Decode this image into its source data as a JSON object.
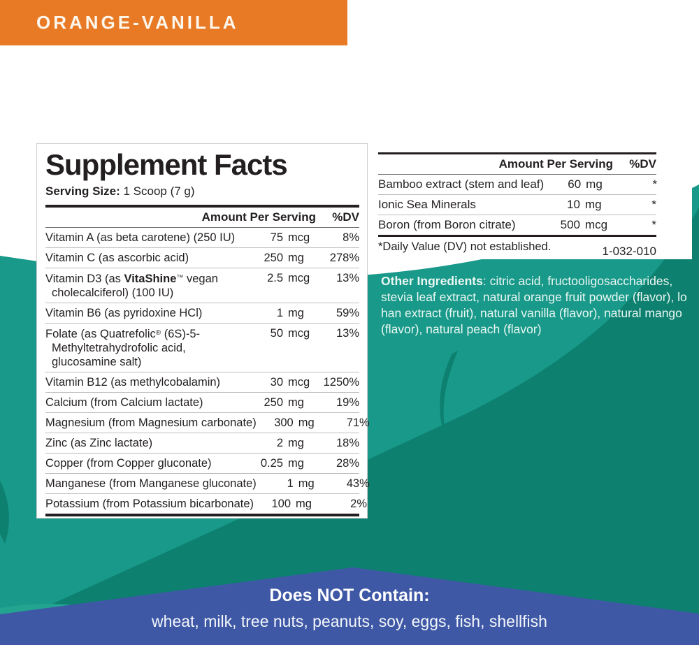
{
  "banner": {
    "flavor": "ORANGE-VANILLA",
    "bg_color": "#E87A25"
  },
  "colors": {
    "teal_bright": "#18998A",
    "teal_dark": "#0D8070",
    "teal_light_accent": "#23A491",
    "blue_band": "#3F58A6",
    "text_dark": "#231F20",
    "text_on_teal": "#EAF7F2"
  },
  "left_panel": {
    "title": "Supplement Facts",
    "serving_label": "Serving Size:",
    "serving_value": " 1 Scoop (7 g)",
    "col_amount": "Amount Per Serving",
    "col_dv": "%DV",
    "rows": [
      {
        "name": "Vitamin A (as beta carotene) (250 IU)",
        "num": "75",
        "unit": "mcg",
        "dv": "8%"
      },
      {
        "name": "Vitamin C (as ascorbic acid)",
        "num": "250",
        "unit": "mg",
        "dv": "278%"
      },
      {
        "parts": [
          {
            "t": "Vitamin D3 (as "
          },
          {
            "t": "VitaShine",
            "b": true
          },
          {
            "t": "™",
            "sup": true
          },
          {
            "t": " vegan"
          },
          {
            "br": true
          },
          {
            "t": "cholecalciferol) (100 IU)"
          }
        ],
        "num": "2.5",
        "unit": "mcg",
        "dv": "13%"
      },
      {
        "name": "Vitamin B6 (as pyridoxine HCl)",
        "num": "1",
        "unit": "mg",
        "dv": "59%"
      },
      {
        "parts": [
          {
            "t": "Folate (as Quatrefolic"
          },
          {
            "t": "®",
            "sup": true
          },
          {
            "t": " (6S)-5-"
          },
          {
            "br": true
          },
          {
            "t": "Methyltetrahydrofolic acid,"
          },
          {
            "br": true
          },
          {
            "t": "glucosamine salt)"
          }
        ],
        "num": "50",
        "unit": "mcg",
        "dv": "13%"
      },
      {
        "name": "Vitamin B12 (as methylcobalamin)",
        "num": "30",
        "unit": "mcg",
        "dv": "1250%"
      },
      {
        "name": "Calcium (from Calcium lactate)",
        "num": "250",
        "unit": "mg",
        "dv": "19%"
      },
      {
        "name": "Magnesium (from Magnesium carbonate)",
        "num": "300",
        "unit": "mg",
        "dv": "71%"
      },
      {
        "name": "Zinc (as Zinc lactate)",
        "num": "2",
        "unit": "mg",
        "dv": "18%"
      },
      {
        "name": "Copper (from Copper gluconate)",
        "num": "0.25",
        "unit": "mg",
        "dv": "28%"
      },
      {
        "name": "Manganese (from Manganese gluconate)",
        "num": "1",
        "unit": "mg",
        "dv": "43%"
      },
      {
        "name": "Potassium (from Potassium bicarbonate)",
        "num": "100",
        "unit": "mg",
        "dv": "2%"
      }
    ]
  },
  "right_panel": {
    "col_amount": "Amount Per Serving",
    "col_dv": "%DV",
    "rows": [
      {
        "name": "Bamboo extract (stem and leaf)",
        "num": "60",
        "unit": "mg",
        "dv": "*"
      },
      {
        "name": "Ionic Sea Minerals",
        "num": "10",
        "unit": "mg",
        "dv": "*"
      },
      {
        "name": "Boron (from Boron citrate)",
        "num": "500",
        "unit": "mcg",
        "dv": "*"
      }
    ],
    "footnote": "*Daily Value (DV) not established.",
    "code": "1-032-010"
  },
  "other_ingredients": {
    "label": "Other Ingredients",
    "text": ": citric acid, fructooligosaccharides, stevia leaf extract, natural orange fruit powder (flavor), lo han extract (fruit), natural vanilla (flavor), natural mango (flavor), natural peach (flavor)"
  },
  "bottom_band": {
    "title": "Does NOT Contain:",
    "items": "wheat, milk, tree nuts, peanuts, soy, eggs, fish, shellfish"
  }
}
